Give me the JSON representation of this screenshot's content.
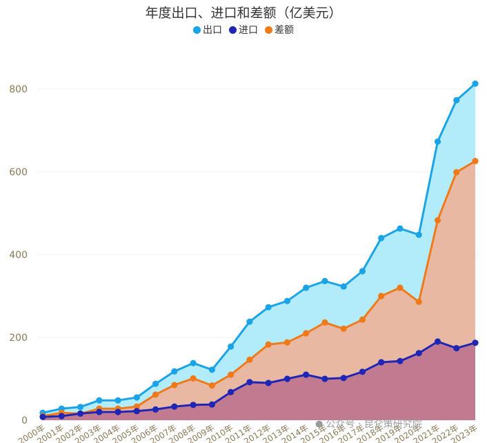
{
  "chart_data": {
    "type": "area",
    "title": "年度出口、进口和差额（亿美元）",
    "categories": [
      "2000年",
      "2001年",
      "2002年",
      "2003年",
      "2004年",
      "2005年",
      "2006年",
      "2007年",
      "2008年",
      "2009年",
      "2010年",
      "2011年",
      "2012年",
      "2013年",
      "2014年",
      "2015年",
      "2016年",
      "2017年",
      "2018年",
      "2019年",
      "2020年",
      "2021年",
      "2022年",
      "2023年"
    ],
    "series": [
      {
        "name": "出口",
        "color": "#1ba3e8",
        "fill": "#b2ecfa",
        "values": [
          18,
          28,
          32,
          48,
          48,
          55,
          88,
          118,
          138,
          122,
          178,
          238,
          273,
          288,
          320,
          336,
          323,
          360,
          440,
          463,
          448,
          673,
          773,
          813
        ]
      },
      {
        "name": "进口",
        "color": "#1f26b5",
        "fill": "#c17a90",
        "values": [
          8,
          10,
          16,
          20,
          20,
          22,
          26,
          33,
          37,
          38,
          68,
          92,
          90,
          100,
          110,
          100,
          102,
          117,
          140,
          143,
          162,
          190,
          174,
          187
        ]
      },
      {
        "name": "差额",
        "color": "#f07a1a",
        "fill": "#e9b8a2",
        "values": [
          10,
          18,
          16,
          28,
          28,
          33,
          62,
          85,
          101,
          84,
          110,
          146,
          183,
          188,
          210,
          236,
          221,
          243,
          300,
          320,
          286,
          483,
          599,
          626
        ]
      }
    ],
    "yticks": [
      0,
      200,
      400,
      600,
      800
    ],
    "ylim": [
      0,
      840
    ],
    "xlabel": "",
    "ylabel": "",
    "legend": "top-center",
    "grid": true
  },
  "watermark": "公众号 · 昆仑策研究院"
}
